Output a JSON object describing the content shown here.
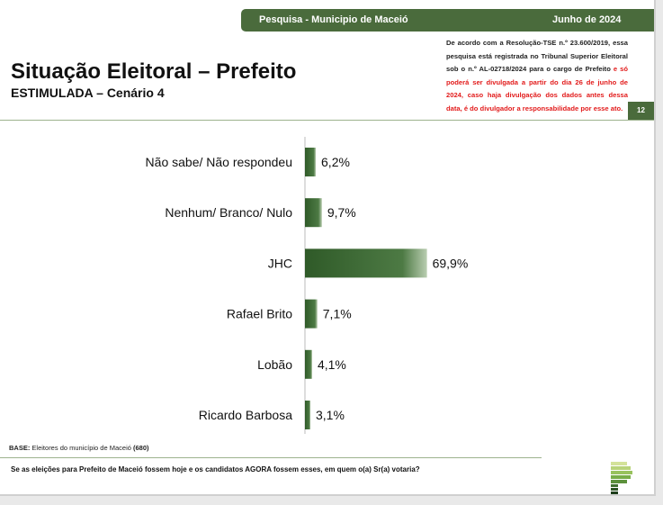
{
  "header": {
    "survey": "Pesquisa - Municipio de Maceió",
    "date": "Junho de 2024"
  },
  "title": "Situação Eleitoral – Prefeito",
  "subtitle": "ESTIMULADA – Cenário 4",
  "notice": {
    "black": "De acordo com a Resolução-TSE n.º 23.600/2019, essa pesquisa está registrada no Tribunal Superior Eleitoral sob o n.º AL-02718/2024 para o cargo de Prefeito ",
    "red": "e só poderá ser divulgada a partir do dia 26 de junho de 2024, caso haja divulgação dos dados antes dessa data, é do divulgador a responsabilidade por esse ato."
  },
  "page_number": "12",
  "base": {
    "label": "BASE:",
    "text": " Eleitores do município de Maceió ",
    "count": "(680)"
  },
  "question": "Se as eleições para Prefeito de Maceió fossem hoje e os candidatos AGORA fossem esses, em quem o(a) Sr(a) votaria?",
  "colors": {
    "accent": "#4a6b3c",
    "bar": "#3f6a35",
    "warning": "#e21b1b"
  },
  "chart_data": {
    "type": "bar",
    "orientation": "horizontal",
    "categories": [
      "Não sabe/ Não respondeu",
      "Nenhum/ Branco/ Nulo",
      "JHC",
      "Rafael Brito",
      "Lobão",
      "Ricardo Barbosa"
    ],
    "values": [
      6.2,
      9.7,
      69.9,
      7.1,
      4.1,
      3.1
    ],
    "labels": [
      "6,2%",
      "9,7%",
      "69,9%",
      "7,1%",
      "4,1%",
      "3,1%"
    ],
    "xlim": [
      0,
      100
    ],
    "grid": false,
    "legend": "none"
  }
}
